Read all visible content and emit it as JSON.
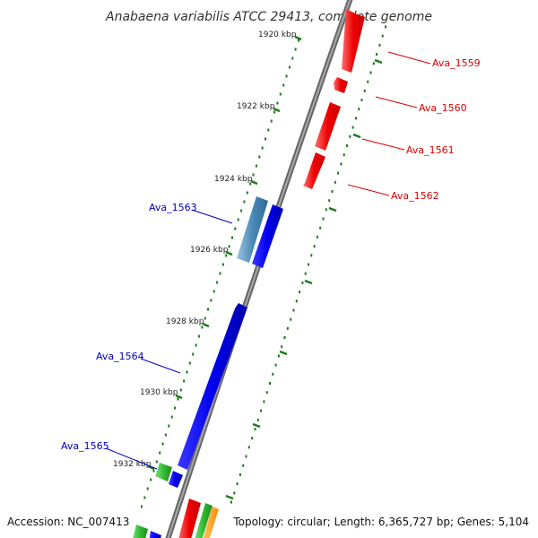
{
  "title": "Anabaena variabilis ATCC 29413, complete genome",
  "footer": {
    "accession": "Accession: NC_007413",
    "summary": "Topology: circular; Length: 6,365,727 bp; Genes: 5,104"
  },
  "ticks": [
    {
      "label": "1920 kbp"
    },
    {
      "label": "1922 kbp"
    },
    {
      "label": "1924 kbp"
    },
    {
      "label": "1926 kbp"
    },
    {
      "label": "1928 kbp"
    },
    {
      "label": "1930 kbp"
    },
    {
      "label": "1932 kbp"
    }
  ],
  "genes": [
    {
      "label": "Ava_1559",
      "strand": "forward",
      "color": "#dd0000"
    },
    {
      "label": "Ava_1560",
      "strand": "forward",
      "color": "#dd0000"
    },
    {
      "label": "Ava_1561",
      "strand": "forward",
      "color": "#dd0000"
    },
    {
      "label": "Ava_1562",
      "strand": "forward",
      "color": "#dd0000"
    },
    {
      "label": "Ava_1563",
      "strand": "reverse",
      "color": "#0000bb"
    },
    {
      "label": "Ava_1564",
      "strand": "reverse",
      "color": "#0000bb"
    },
    {
      "label": "Ava_1565",
      "strand": "reverse",
      "color": "#0000bb"
    }
  ],
  "colors": {
    "backbone": "#808080",
    "forward_gene": "#ee0000",
    "reverse_gene": "#0000ee",
    "rna_gene": "#4a8ab8",
    "green_feature": "#33bb33",
    "orange_feature": "#ff9900",
    "tick_marks": "#1a7a1a"
  }
}
